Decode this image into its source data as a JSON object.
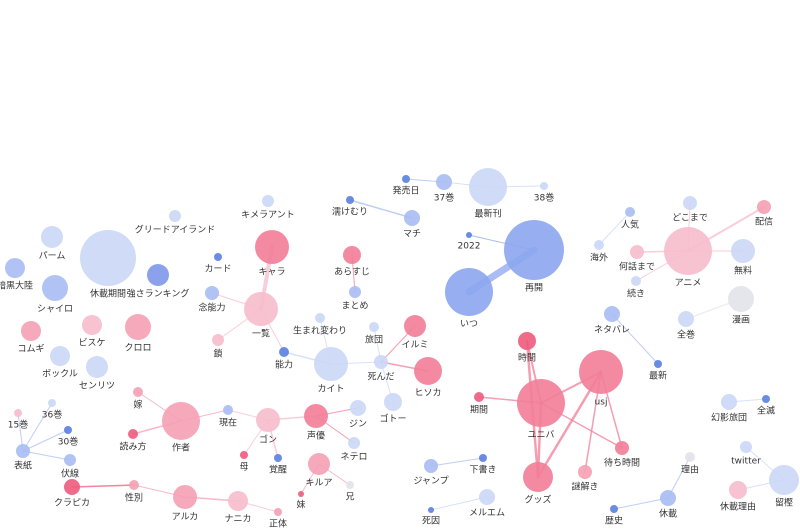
{
  "nodes": [
    "休載期間",
    "強さランキング",
    "グリードアイランド",
    "カード",
    "キメラアント",
    "キャラ",
    "念能力",
    "一覧",
    "鎖",
    "能力",
    "生まれ変わり",
    "カイト",
    "濡けむり",
    "マチ",
    "あらすじ",
    "まとめ",
    "旅団",
    "イルミ",
    "死んだ",
    "ヒソカ",
    "ゴトー",
    "発売日",
    "37巻",
    "最新刊",
    "38巻",
    "2022",
    "再開",
    "いつ",
    "ネタバレ",
    "最新",
    "時間",
    "usj",
    "期間",
    "ユニバ",
    "待ち時間",
    "謎解き",
    "グッズ",
    "人気",
    "どこまで",
    "配信",
    "海外",
    "何話まで",
    "アニメ",
    "無料",
    "続き",
    "全巻",
    "漫画",
    "幻影旅団",
    "全滅",
    "twitter",
    "理由",
    "留樫",
    "休載理由",
    "休載",
    "歴史",
    "ジャンプ",
    "下書き",
    "死因",
    "メルエム",
    "ジン",
    "声優",
    "ネテロ",
    "ゴン",
    "現在",
    "作者",
    "嫁",
    "読み方",
    "母",
    "覚醒",
    "キルア",
    "妹",
    "兄",
    "正体",
    "ナニカ",
    "アルカ",
    "性別",
    "クラピカ",
    "表紙",
    "15巻",
    "36巻",
    "30巻",
    "伏線",
    "ボックル",
    "センリツ",
    "コムギ",
    "ビスケ",
    "クロロ",
    "シャイロ",
    "パーム",
    "暗黒大陸"
  ]
}
